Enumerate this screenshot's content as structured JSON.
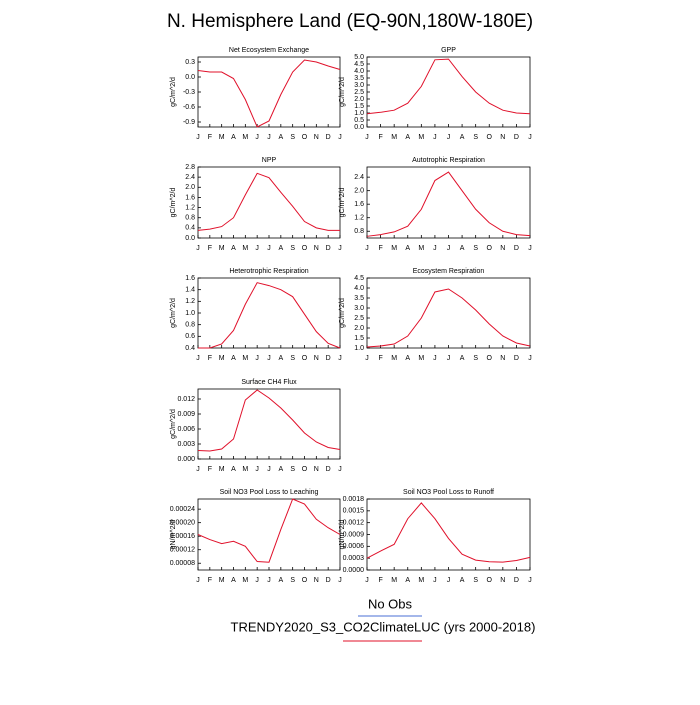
{
  "title": "N. Hemisphere Land (EQ-90N,180W-180E)",
  "legend": [
    {
      "name": "No Obs",
      "color": "#4a6fd6"
    },
    {
      "name": "TRENDY2020_S3_CO2ClimateLUC (yrs 2000-2018)",
      "color": "#e0102a"
    }
  ],
  "chart_data": [
    {
      "type": "line",
      "title": "Net Ecosystem Exchange",
      "y_label": "gC/m^2/d",
      "color": "#e0102a",
      "categories": [
        "J",
        "F",
        "M",
        "A",
        "M",
        "J",
        "J",
        "A",
        "S",
        "O",
        "N",
        "D",
        "J"
      ],
      "values": [
        0.13,
        0.1,
        0.1,
        -0.03,
        -0.45,
        -1.0,
        -0.88,
        -0.35,
        0.1,
        0.34,
        0.3,
        0.22,
        0.15
      ],
      "ylim": [
        -1.0,
        0.4
      ],
      "yticks": [
        {
          "value": 0.3,
          "label": "0.3"
        },
        {
          "value": 0,
          "label": "0.0"
        },
        {
          "value": -0.3,
          "label": "-0.3"
        },
        {
          "value": -0.6,
          "label": "-0.6"
        },
        {
          "value": -0.9,
          "label": "-0.9"
        }
      ]
    },
    {
      "type": "line",
      "title": "GPP",
      "y_label": "gC/m^2/d",
      "color": "#e0102a",
      "categories": [
        "J",
        "F",
        "M",
        "A",
        "M",
        "J",
        "J",
        "A",
        "S",
        "O",
        "N",
        "D",
        "J"
      ],
      "values": [
        0.95,
        1.05,
        1.2,
        1.7,
        2.9,
        4.8,
        4.85,
        3.6,
        2.5,
        1.7,
        1.2,
        1.0,
        0.95
      ],
      "ylim": [
        0,
        5
      ],
      "yticks": [
        {
          "value": 0,
          "label": "0.0"
        },
        {
          "value": 0.5,
          "label": "0.5"
        },
        {
          "value": 1,
          "label": "1.0"
        },
        {
          "value": 1.5,
          "label": "1.5"
        },
        {
          "value": 2,
          "label": "2.0"
        },
        {
          "value": 2.5,
          "label": "2.5"
        },
        {
          "value": 3,
          "label": "3.0"
        },
        {
          "value": 3.5,
          "label": "3.5"
        },
        {
          "value": 4,
          "label": "4.0"
        },
        {
          "value": 4.5,
          "label": "4.5"
        },
        {
          "value": 5,
          "label": "5.0"
        }
      ]
    },
    {
      "type": "line",
      "title": "NPP",
      "y_label": "gC/m^2/d",
      "color": "#e0102a",
      "categories": [
        "J",
        "F",
        "M",
        "A",
        "M",
        "J",
        "J",
        "A",
        "S",
        "O",
        "N",
        "D",
        "J"
      ],
      "values": [
        0.3,
        0.35,
        0.45,
        0.8,
        1.7,
        2.55,
        2.38,
        1.8,
        1.25,
        0.65,
        0.4,
        0.3,
        0.3
      ],
      "ylim": [
        0,
        2.8
      ],
      "yticks": [
        {
          "value": 0,
          "label": "0.0"
        },
        0.4,
        0.8,
        1.2,
        1.6,
        {
          "value": 2,
          "label": "2.0"
        },
        2.4,
        2.8
      ]
    },
    {
      "type": "line",
      "title": "Autotrophic Respiration",
      "y_label": "gC/m^2/d",
      "color": "#e0102a",
      "categories": [
        "J",
        "F",
        "M",
        "A",
        "M",
        "J",
        "J",
        "A",
        "S",
        "O",
        "N",
        "D",
        "J"
      ],
      "values": [
        0.65,
        0.7,
        0.78,
        0.95,
        1.45,
        2.3,
        2.55,
        2.0,
        1.45,
        1.05,
        0.8,
        0.7,
        0.67
      ],
      "ylim": [
        0.6,
        2.7
      ],
      "yticks": [
        0.8,
        1.2,
        1.6,
        {
          "value": 2,
          "label": "2.0"
        },
        2.4
      ]
    },
    {
      "type": "line",
      "title": "Heterotrophic Respiration",
      "y_label": "gC/m^2/d",
      "color": "#e0102a",
      "categories": [
        "J",
        "F",
        "M",
        "A",
        "M",
        "J",
        "J",
        "A",
        "S",
        "O",
        "N",
        "D",
        "J"
      ],
      "values": [
        0.4,
        0.4,
        0.47,
        0.7,
        1.15,
        1.52,
        1.47,
        1.4,
        1.28,
        0.98,
        0.68,
        0.48,
        0.4
      ],
      "ylim": [
        0.4,
        1.6
      ],
      "yticks": [
        0.4,
        0.6,
        0.8,
        {
          "value": 1,
          "label": "1.0"
        },
        1.2,
        1.4,
        1.6
      ]
    },
    {
      "type": "line",
      "title": "Ecosystem Respiration",
      "y_label": "gC/m^2/d",
      "color": "#e0102a",
      "categories": [
        "J",
        "F",
        "M",
        "A",
        "M",
        "J",
        "J",
        "A",
        "S",
        "O",
        "N",
        "D",
        "J"
      ],
      "values": [
        1.05,
        1.1,
        1.2,
        1.6,
        2.5,
        3.8,
        3.95,
        3.5,
        2.9,
        2.2,
        1.6,
        1.25,
        1.1
      ],
      "ylim": [
        1.0,
        4.5
      ],
      "yticks": [
        {
          "value": 1,
          "label": "1.0"
        },
        1.5,
        {
          "value": 2,
          "label": "2.0"
        },
        2.5,
        {
          "value": 3,
          "label": "3.0"
        },
        3.5,
        {
          "value": 4,
          "label": "4.0"
        },
        4.5
      ]
    },
    {
      "type": "line",
      "title": "Surface CH4 Flux",
      "y_label": "gC/m^2/d",
      "color": "#e0102a",
      "categories": [
        "J",
        "F",
        "M",
        "A",
        "M",
        "J",
        "J",
        "A",
        "S",
        "O",
        "N",
        "D",
        "J"
      ],
      "values": [
        0.0017,
        0.0016,
        0.002,
        0.004,
        0.0118,
        0.0138,
        0.0122,
        0.0102,
        0.0078,
        0.0052,
        0.0034,
        0.0023,
        0.0019
      ],
      "ylim": [
        0,
        0.014
      ],
      "yticks": [
        {
          "value": 0,
          "label": "0.000"
        },
        0.003,
        0.006,
        0.009,
        0.012
      ]
    },
    {
      "type": "line",
      "title": "Soil NO3 Pool Loss to Leaching",
      "y_label": "gN/m^2/d",
      "color": "#e0102a",
      "categories": [
        "J",
        "F",
        "M",
        "A",
        "M",
        "J",
        "J",
        "A",
        "S",
        "O",
        "N",
        "D",
        "J"
      ],
      "values": [
        0.000165,
        0.00015,
        0.000138,
        0.000145,
        0.00013,
        8.5e-05,
        8.3e-05,
        0.00018,
        0.00027,
        0.000255,
        0.00021,
        0.000185,
        0.000165
      ],
      "ylim": [
        6e-05,
        0.00027
      ],
      "yticks": [
        8e-05,
        0.00012,
        0.00016,
        {
          "value": 0.0002,
          "label": "0.00020"
        },
        0.00024
      ]
    },
    {
      "type": "line",
      "title": "Soil NO3 Pool Loss to Runoff",
      "y_label": "gN/m^2/d",
      "color": "#e0102a",
      "categories": [
        "J",
        "F",
        "M",
        "A",
        "M",
        "J",
        "J",
        "A",
        "S",
        "O",
        "N",
        "D",
        "J"
      ],
      "values": [
        0.0003,
        0.00048,
        0.00065,
        0.0013,
        0.0017,
        0.0013,
        0.0008,
        0.0004,
        0.00025,
        0.00021,
        0.0002,
        0.00024,
        0.00032
      ],
      "ylim": [
        0,
        0.0018
      ],
      "yticks": [
        {
          "value": 0,
          "label": "0.0000"
        },
        0.0003,
        0.0006,
        0.0009,
        0.0012,
        0.0015,
        0.0018
      ]
    }
  ]
}
